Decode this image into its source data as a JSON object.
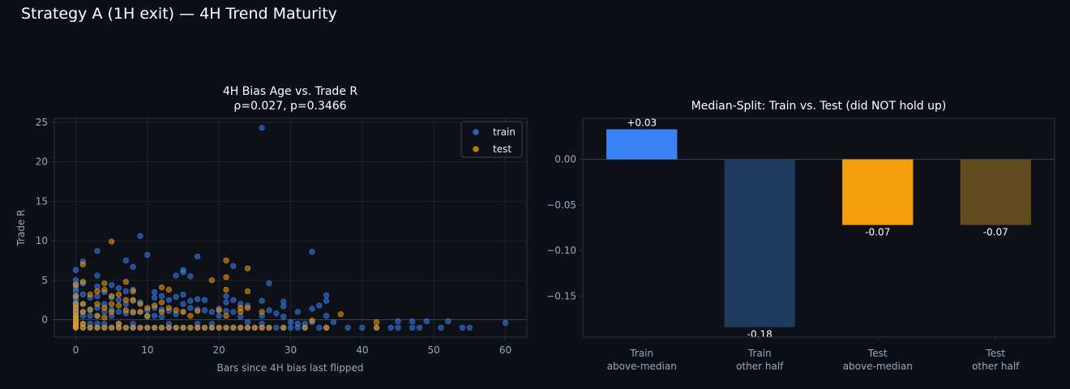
{
  "figure": {
    "title": "Strategy A (1H exit) — 4H Trend Maturity"
  },
  "colors": {
    "background": "#0b0f17",
    "axes_face": "#0d1117",
    "spine": "#2a3340",
    "grid": "#1c2430",
    "tick_text": "#9aa7b8",
    "title_text": "#ffffff",
    "train": "#3b82f6",
    "test": "#f59e0b",
    "train_other": "#1e3a5f",
    "test_other": "#5f4b1e"
  },
  "chart_data": [
    {
      "type": "scatter",
      "title": "4H Bias Age vs. Trade R",
      "subtitle": "ρ=0.027, p=0.3466",
      "xlabel": "Bars since 4H bias last flipped",
      "ylabel": "Trade R",
      "xlim": [
        -3,
        63
      ],
      "ylim": [
        -2.2,
        25.5
      ],
      "xticks": [
        0,
        10,
        20,
        30,
        40,
        50,
        60
      ],
      "yticks": [
        0,
        5,
        10,
        15,
        20,
        25
      ],
      "grid": true,
      "legend_position": "top-right",
      "series": [
        {
          "name": "train",
          "color": "#3b82f6",
          "points": [
            [
              0,
              6.3
            ],
            [
              0,
              5.0
            ],
            [
              0,
              4.5
            ],
            [
              0,
              4.0
            ],
            [
              0,
              3.6
            ],
            [
              0,
              3.0
            ],
            [
              0,
              2.6
            ],
            [
              0,
              2.2
            ],
            [
              0,
              1.8
            ],
            [
              0,
              1.5
            ],
            [
              0,
              1.2
            ],
            [
              0,
              0.9
            ],
            [
              0,
              0.6
            ],
            [
              0,
              0.3
            ],
            [
              0,
              0
            ],
            [
              0,
              -0.3
            ],
            [
              0,
              -0.6
            ],
            [
              0,
              -0.9
            ],
            [
              0,
              -1.0
            ],
            [
              1,
              7.4
            ],
            [
              1,
              4.6
            ],
            [
              1,
              3.2
            ],
            [
              1,
              2.0
            ],
            [
              1,
              1.0
            ],
            [
              1,
              0.5
            ],
            [
              1,
              -0.5
            ],
            [
              1,
              -1.0
            ],
            [
              2,
              2.8
            ],
            [
              2,
              1.2
            ],
            [
              2,
              0.5
            ],
            [
              2,
              -0.5
            ],
            [
              2,
              -1.0
            ],
            [
              3,
              8.7
            ],
            [
              3,
              5.6
            ],
            [
              3,
              4.2
            ],
            [
              3,
              3.0
            ],
            [
              3,
              1.5
            ],
            [
              3,
              0.5
            ],
            [
              3,
              -0.5
            ],
            [
              3,
              -1.0
            ],
            [
              4,
              3.5
            ],
            [
              4,
              2.0
            ],
            [
              4,
              1.0
            ],
            [
              4,
              -0.5
            ],
            [
              4,
              -1.0
            ],
            [
              5,
              4.4
            ],
            [
              5,
              2.8
            ],
            [
              5,
              1.3
            ],
            [
              5,
              0.5
            ],
            [
              5,
              -1.0
            ],
            [
              6,
              4.0
            ],
            [
              6,
              2.5
            ],
            [
              6,
              1.0
            ],
            [
              6,
              -0.5
            ],
            [
              6,
              -1.0
            ],
            [
              7,
              7.5
            ],
            [
              7,
              3.6
            ],
            [
              7,
              2.0
            ],
            [
              7,
              0.8
            ],
            [
              7,
              -1.0
            ],
            [
              8,
              6.7
            ],
            [
              8,
              3.8
            ],
            [
              8,
              2.4
            ],
            [
              8,
              0.9
            ],
            [
              8,
              -0.5
            ],
            [
              8,
              -1.0
            ],
            [
              9,
              10.6
            ],
            [
              9,
              2.2
            ],
            [
              9,
              1.0
            ],
            [
              9,
              -1.0
            ],
            [
              10,
              8.2
            ],
            [
              10,
              1.2
            ],
            [
              10,
              0.4
            ],
            [
              10,
              -1.0
            ],
            [
              11,
              3.5
            ],
            [
              11,
              2.8
            ],
            [
              11,
              1.5
            ],
            [
              11,
              0.5
            ],
            [
              11,
              -1.0
            ],
            [
              12,
              3.0
            ],
            [
              12,
              1.3
            ],
            [
              12,
              0.4
            ],
            [
              12,
              -1.0
            ],
            [
              13,
              2.5
            ],
            [
              13,
              1.1
            ],
            [
              13,
              -0.5
            ],
            [
              13,
              -1.0
            ],
            [
              14,
              5.6
            ],
            [
              14,
              2.9
            ],
            [
              14,
              0.7
            ],
            [
              14,
              -1.0
            ],
            [
              15,
              6.3
            ],
            [
              15,
              6.0
            ],
            [
              15,
              3.2
            ],
            [
              15,
              2.0
            ],
            [
              15,
              1.0
            ],
            [
              15,
              -1.0
            ],
            [
              16,
              5.5
            ],
            [
              16,
              2.4
            ],
            [
              16,
              1.5
            ],
            [
              16,
              -1.0
            ],
            [
              17,
              8.0
            ],
            [
              17,
              2.6
            ],
            [
              17,
              1.3
            ],
            [
              17,
              -0.5
            ],
            [
              17,
              -1.0
            ],
            [
              18,
              2.5
            ],
            [
              18,
              1.2
            ],
            [
              18,
              -1.0
            ],
            [
              19,
              1.0
            ],
            [
              19,
              -0.5
            ],
            [
              19,
              -1.0
            ],
            [
              20,
              1.4
            ],
            [
              20,
              0.5
            ],
            [
              20,
              -1.0
            ],
            [
              21,
              3.0
            ],
            [
              21,
              2.2
            ],
            [
              21,
              1.1
            ],
            [
              21,
              -1.0
            ],
            [
              22,
              6.8
            ],
            [
              22,
              2.5
            ],
            [
              22,
              1.0
            ],
            [
              22,
              -1.0
            ],
            [
              23,
              2.0
            ],
            [
              23,
              0.4
            ],
            [
              23,
              -1.0
            ],
            [
              24,
              1.8
            ],
            [
              24,
              -0.3
            ],
            [
              24,
              -1.0
            ],
            [
              25,
              -1.0
            ],
            [
              26,
              24.3
            ],
            [
              26,
              2.4
            ],
            [
              26,
              0.5
            ],
            [
              26,
              -0.5
            ],
            [
              26,
              -1.0
            ],
            [
              27,
              4.6
            ],
            [
              27,
              1.2
            ],
            [
              27,
              -1.0
            ],
            [
              28,
              0.8
            ],
            [
              28,
              -1.0
            ],
            [
              29,
              2.3
            ],
            [
              29,
              1.7
            ],
            [
              29,
              0.4
            ],
            [
              29,
              -1.0
            ],
            [
              30,
              -0.3
            ],
            [
              30,
              -1.0
            ],
            [
              31,
              1.0
            ],
            [
              31,
              -0.5
            ],
            [
              31,
              -1.0
            ],
            [
              32,
              -0.5
            ],
            [
              32,
              -1.0
            ],
            [
              33,
              8.6
            ],
            [
              33,
              1.4
            ],
            [
              33,
              -0.3
            ],
            [
              34,
              1.8
            ],
            [
              34,
              -1.0
            ],
            [
              35,
              3.1
            ],
            [
              35,
              2.4
            ],
            [
              35,
              0.5
            ],
            [
              35,
              -1.0
            ],
            [
              36,
              -0.3
            ],
            [
              38,
              -1.0
            ],
            [
              40,
              -1.0
            ],
            [
              42,
              -1.0
            ],
            [
              44,
              -1.0
            ],
            [
              45,
              -1.0
            ],
            [
              45,
              -0.2
            ],
            [
              47,
              -1.0
            ],
            [
              47,
              -0.2
            ],
            [
              48,
              -1.0
            ],
            [
              49,
              -0.2
            ],
            [
              51,
              -1.0
            ],
            [
              52,
              -0.2
            ],
            [
              54,
              -1.0
            ],
            [
              55,
              -1.0
            ],
            [
              60,
              -0.4
            ]
          ]
        },
        {
          "name": "test",
          "color": "#f59e0b",
          "points": [
            [
              0,
              4.4
            ],
            [
              0,
              3.0
            ],
            [
              0,
              2.0
            ],
            [
              0,
              1.5
            ],
            [
              0,
              1.0
            ],
            [
              0,
              0.5
            ],
            [
              0,
              0.2
            ],
            [
              0,
              -0.2
            ],
            [
              0,
              -0.5
            ],
            [
              0,
              -0.8
            ],
            [
              0,
              -1.0
            ],
            [
              1,
              7.0
            ],
            [
              1,
              4.8
            ],
            [
              1,
              2.0
            ],
            [
              1,
              1.0
            ],
            [
              1,
              -0.5
            ],
            [
              1,
              -1.0
            ],
            [
              2,
              3.2
            ],
            [
              2,
              1.3
            ],
            [
              2,
              -1.0
            ],
            [
              3,
              3.6
            ],
            [
              3,
              2.0
            ],
            [
              3,
              0.5
            ],
            [
              3,
              -1.0
            ],
            [
              4,
              4.6
            ],
            [
              4,
              3.8
            ],
            [
              4,
              1.5
            ],
            [
              4,
              0.3
            ],
            [
              4,
              -1.0
            ],
            [
              5,
              9.9
            ],
            [
              5,
              3.0
            ],
            [
              5,
              2.0
            ],
            [
              5,
              1.0
            ],
            [
              5,
              -1.0
            ],
            [
              6,
              3.2
            ],
            [
              6,
              1.8
            ],
            [
              6,
              -0.5
            ],
            [
              6,
              -1.0
            ],
            [
              7,
              4.8
            ],
            [
              7,
              2.5
            ],
            [
              7,
              1.2
            ],
            [
              7,
              -1.0
            ],
            [
              8,
              2.5
            ],
            [
              8,
              3.6
            ],
            [
              8,
              1.0
            ],
            [
              8,
              -1.0
            ],
            [
              9,
              2.0
            ],
            [
              9,
              1.0
            ],
            [
              9,
              -1.0
            ],
            [
              10,
              1.5
            ],
            [
              10,
              0.5
            ],
            [
              10,
              -1.0
            ],
            [
              11,
              1.8
            ],
            [
              11,
              -1.0
            ],
            [
              12,
              4.1
            ],
            [
              12,
              2.2
            ],
            [
              12,
              1.0
            ],
            [
              12,
              -1.0
            ],
            [
              13,
              3.8
            ],
            [
              13,
              1.5
            ],
            [
              13,
              -1.0
            ],
            [
              14,
              1.2
            ],
            [
              14,
              -1.0
            ],
            [
              15,
              1.0
            ],
            [
              15,
              -1.0
            ],
            [
              16,
              0.5
            ],
            [
              16,
              -1.0
            ],
            [
              17,
              1.1
            ],
            [
              17,
              -1.0
            ],
            [
              18,
              -1.0
            ],
            [
              19,
              5.0
            ],
            [
              19,
              -1.0
            ],
            [
              20,
              1.2
            ],
            [
              20,
              -1.0
            ],
            [
              21,
              7.5
            ],
            [
              21,
              5.4
            ],
            [
              21,
              3.8
            ],
            [
              21,
              0.5
            ],
            [
              21,
              -1.0
            ],
            [
              22,
              -1.0
            ],
            [
              23,
              1.5
            ],
            [
              23,
              1.0
            ],
            [
              23,
              -1.0
            ],
            [
              24,
              6.5
            ],
            [
              24,
              3.6
            ],
            [
              24,
              1.5
            ],
            [
              24,
              -1.0
            ],
            [
              25,
              -1.0
            ],
            [
              26,
              1.0
            ],
            [
              26,
              -1.0
            ],
            [
              27,
              -1.0
            ],
            [
              29,
              -1.0
            ],
            [
              32,
              -1.0
            ],
            [
              33,
              -0.1
            ],
            [
              35,
              -1.0
            ],
            [
              37,
              0.7
            ],
            [
              42,
              -0.3
            ],
            [
              42,
              -1.0
            ]
          ]
        }
      ]
    },
    {
      "type": "bar",
      "title": "Median-Split: Train vs. Test (did NOT hold up)",
      "categories": [
        [
          "Train",
          "above-median"
        ],
        [
          "Train",
          "other half"
        ],
        [
          "Test",
          "above-median"
        ],
        [
          "Test",
          "other half"
        ]
      ],
      "values": [
        0.033,
        -0.184,
        -0.072,
        -0.072
      ],
      "value_labels": [
        "+0.03",
        "-0.18",
        "-0.07",
        "-0.07"
      ],
      "bar_colors": [
        "#3b82f6",
        "#1e3a5f",
        "#f59e0b",
        "#5f4b1e"
      ],
      "ylim": [
        -0.195,
        0.045
      ],
      "yticks": [
        "0.00",
        "−0.05",
        "−0.10",
        "−0.15"
      ],
      "ytick_values": [
        0,
        -0.05,
        -0.1,
        -0.15
      ],
      "grid": false
    }
  ]
}
